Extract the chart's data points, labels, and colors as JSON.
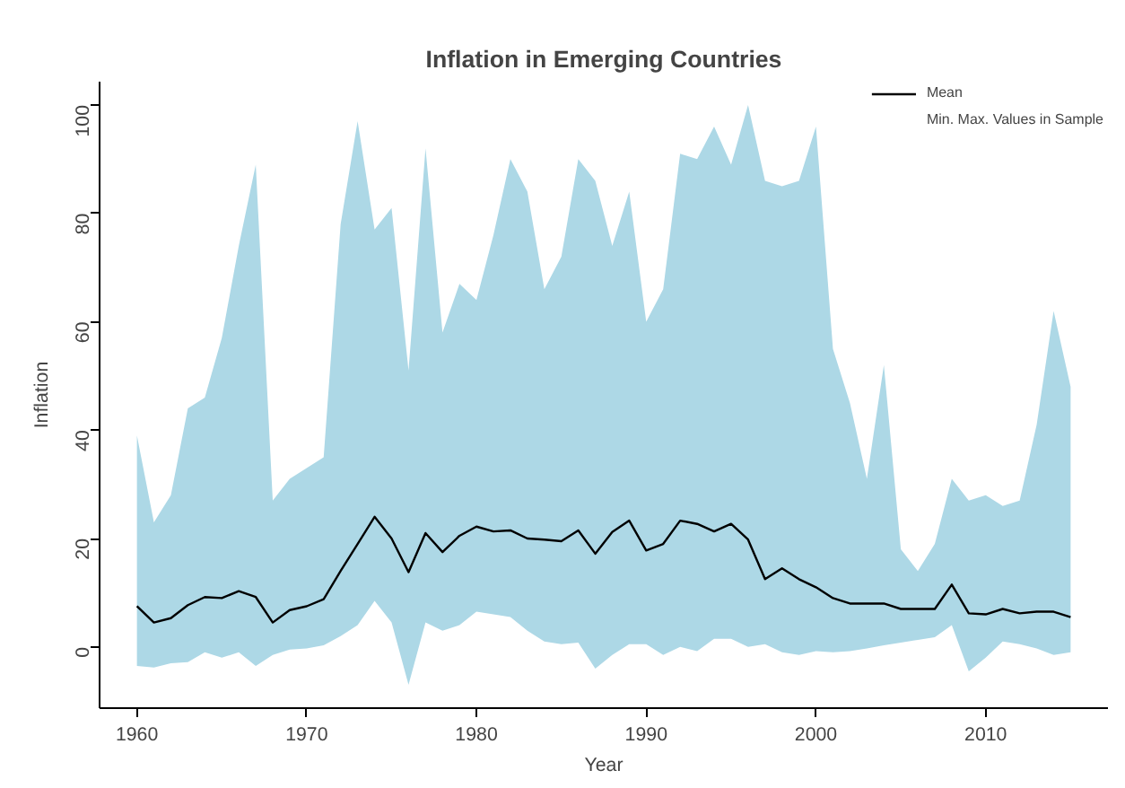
{
  "chart_data": {
    "type": "line",
    "title": "Inflation in Emerging Countries",
    "xlabel": "Year",
    "ylabel": "Inflation",
    "annotations": [
      "Min. Max. Values in Sample"
    ],
    "x": [
      1960,
      1961,
      1962,
      1963,
      1964,
      1965,
      1966,
      1967,
      1968,
      1969,
      1970,
      1971,
      1972,
      1973,
      1974,
      1975,
      1976,
      1977,
      1978,
      1979,
      1980,
      1981,
      1982,
      1983,
      1984,
      1985,
      1986,
      1987,
      1988,
      1989,
      1990,
      1991,
      1992,
      1993,
      1994,
      1995,
      1996,
      1997,
      1998,
      1999,
      2000,
      2001,
      2002,
      2003,
      2004,
      2005,
      2006,
      2007,
      2008,
      2009,
      2010,
      2011,
      2012,
      2013,
      2014,
      2015
    ],
    "series": [
      {
        "name": "Mean",
        "color": "#000000",
        "values": [
          7.5,
          4.5,
          5.3,
          7.7,
          9.2,
          9,
          10.3,
          9.2,
          4.5,
          6.8,
          7.5,
          8.8,
          14,
          19,
          24,
          20,
          13.8,
          21,
          17.5,
          20.5,
          22.2,
          21.3,
          21.5,
          20,
          19.8,
          19.5,
          21.5,
          17.2,
          21.2,
          23.3,
          17.8,
          19,
          23.3,
          22.7,
          21.3,
          22.7,
          19.8,
          12.5,
          14.5,
          12.5,
          11,
          9,
          8,
          8,
          8,
          7,
          7,
          7,
          11.5,
          6.2,
          6,
          7,
          6.2,
          6.5,
          6.5,
          5.5
        ],
        "upper": [
          39,
          23,
          28,
          44,
          46,
          57,
          74,
          89,
          27,
          31,
          33,
          35,
          78,
          97,
          77,
          81,
          51,
          92,
          58,
          67,
          64,
          76,
          90,
          84,
          66,
          72,
          90,
          86,
          74,
          84,
          60,
          66,
          91,
          90,
          96,
          89,
          100,
          86,
          85,
          86,
          96,
          55,
          45,
          31,
          52,
          18,
          14,
          19,
          31,
          27,
          28,
          26,
          27,
          41,
          62,
          48
        ],
        "lower": [
          -3.5,
          -3.8,
          -3,
          -2.8,
          -1,
          -2,
          -1,
          -3.5,
          -1.5,
          -0.5,
          -0.3,
          0.3,
          2,
          4,
          8.5,
          4.5,
          -7,
          4.5,
          3,
          4,
          6.5,
          6,
          5.5,
          3,
          1,
          0.5,
          0.8,
          -4,
          -1.5,
          0.5,
          0.5,
          -1.5,
          0,
          -0.8,
          1.5,
          1.5,
          0,
          0.5,
          -1,
          -1.5,
          -0.8,
          -1,
          -0.8,
          -0.3,
          0.3,
          0.8,
          1.3,
          1.8,
          4,
          -4.5,
          -2,
          1,
          0.5,
          -0.3,
          -1.5,
          -1
        ]
      }
    ],
    "xlim": [
      1957.8,
      2017.2
    ],
    "ylim": [
      -11.3,
      104.3
    ],
    "xticks": [
      1960,
      1970,
      1980,
      1990,
      2000,
      2010
    ],
    "yticks": [
      0,
      20,
      40,
      60,
      80,
      100
    ],
    "grid": false,
    "legend": "top right",
    "line_style": "solid"
  }
}
